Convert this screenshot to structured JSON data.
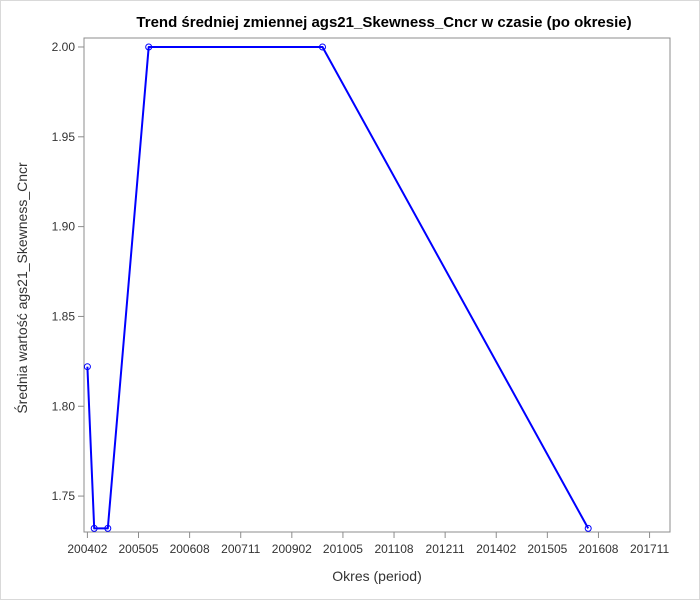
{
  "chart_data": {
    "type": "line",
    "title": "Trend średniej zmiennej ags21_Skewness_Cncr w czasie (po okresie)",
    "xlabel": "Okres (period)",
    "ylabel": "Średnia wartość ags21_Skewness_Cncr",
    "x_ticks": [
      "200402",
      "200505",
      "200608",
      "200711",
      "200902",
      "201005",
      "201108",
      "201211",
      "201402",
      "201505",
      "201608",
      "201711"
    ],
    "y_ticks": [
      "1.75",
      "1.80",
      "1.85",
      "1.90",
      "1.95",
      "2.00"
    ],
    "ylim": [
      1.73,
      2.005
    ],
    "xlim": [
      "2004-01",
      "2018-05"
    ],
    "grid": false,
    "legend": "none",
    "series_color": "#0000ff",
    "series": [
      {
        "x": [
          "2004-02",
          "2004-04",
          "2004-08",
          "2005-08",
          "2009-11",
          "2016-05"
        ],
        "y": [
          1.822,
          1.732,
          1.732,
          2.0,
          2.0,
          1.732
        ]
      }
    ]
  }
}
